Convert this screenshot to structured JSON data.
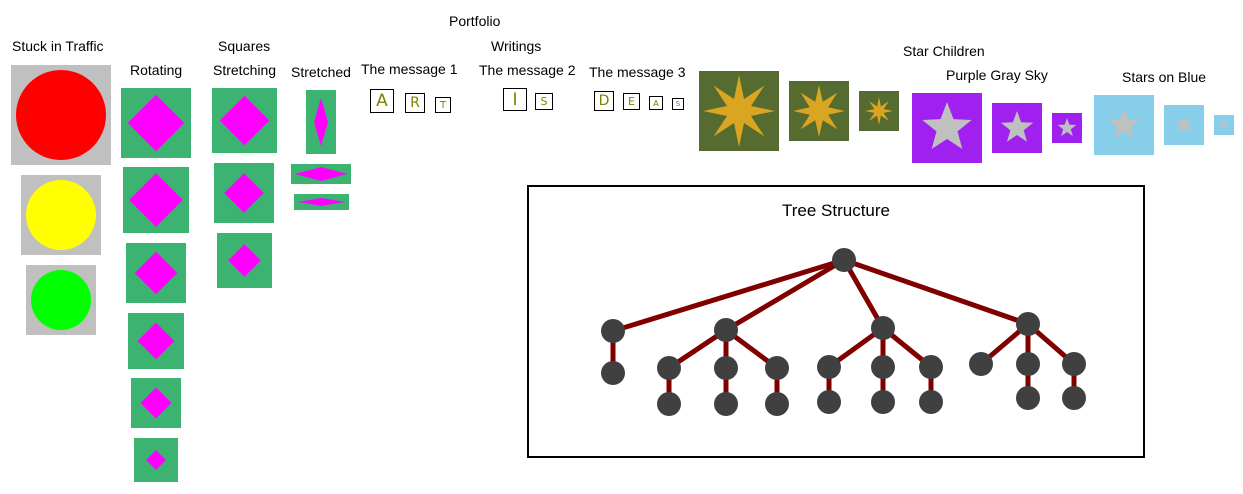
{
  "portfolio_title": "Portfolio",
  "traffic": {
    "label": "Stuck in Traffic",
    "lights": [
      {
        "name": "red-light",
        "color": "#ff0000"
      },
      {
        "name": "yellow-light",
        "color": "#ffff00"
      },
      {
        "name": "green-light",
        "color": "#00ff00"
      }
    ]
  },
  "squares_group_label": "Squares",
  "rotating": {
    "label": "Rotating"
  },
  "stretching": {
    "label": "Stretching"
  },
  "stretched": {
    "label": "Stretched"
  },
  "writings_group_label": "Writings",
  "messages": [
    {
      "label": "The message 1",
      "letters": [
        "A",
        "R",
        "T"
      ]
    },
    {
      "label": "The message 2",
      "letters": [
        "I",
        "S"
      ]
    },
    {
      "label": "The message 3",
      "letters": [
        "D",
        "E",
        "A",
        "S"
      ]
    }
  ],
  "star_children": {
    "label": "Star Children",
    "groups": [
      {
        "label": "",
        "bg": "#556b2f",
        "star": "#daa520"
      },
      {
        "label": "Purple Gray Sky",
        "bg": "#a020f0",
        "star": "#c0c0c0"
      },
      {
        "label": "Stars on Blue",
        "bg": "#87ceeb",
        "star": "#c0c0c0"
      }
    ]
  },
  "tree": {
    "title": "Tree Structure",
    "node_color": "#404040",
    "edge_color": "#800000"
  }
}
